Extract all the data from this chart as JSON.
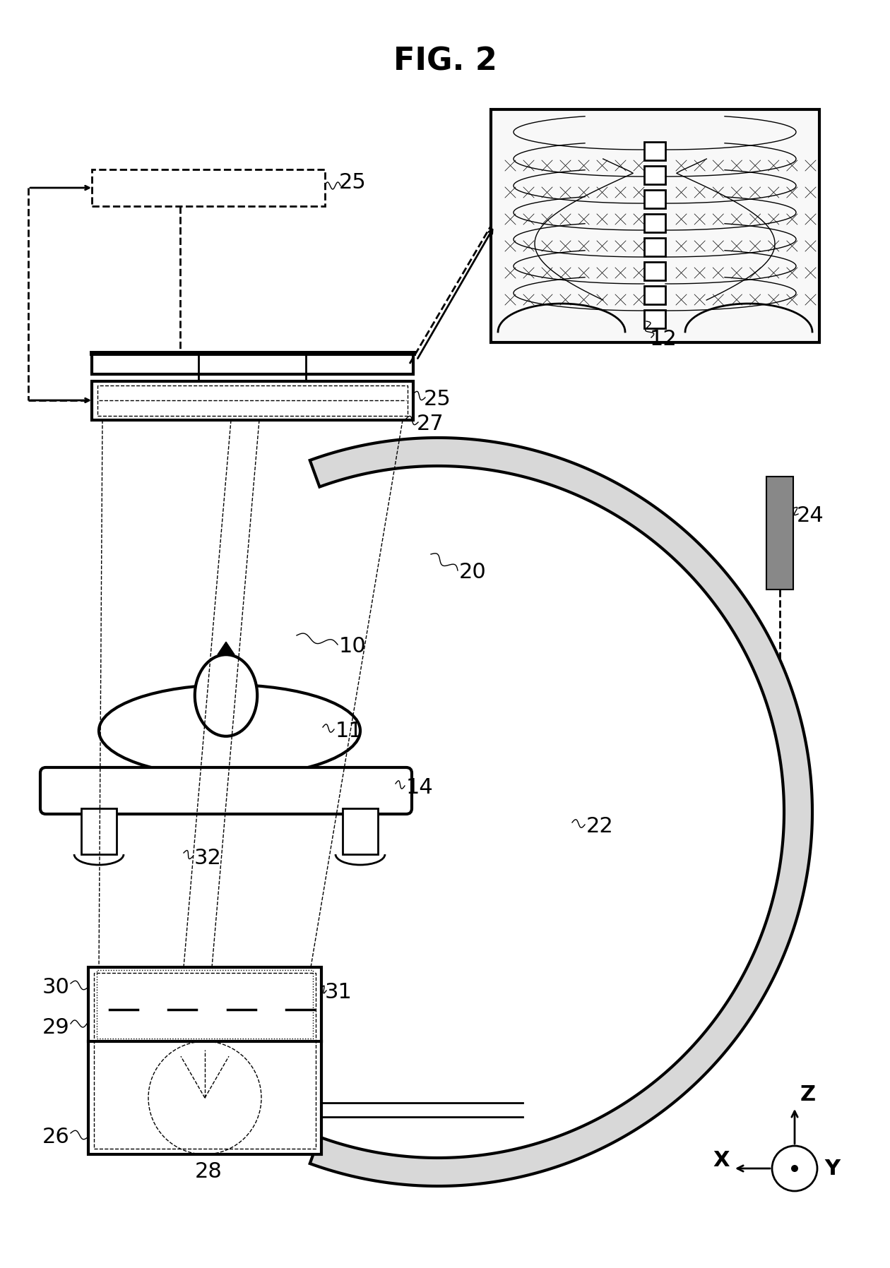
{
  "title": "FIG. 2",
  "bg_color": "#ffffff",
  "fig_width": 12.4,
  "fig_height": 17.76,
  "labels": {
    "25_top": "25",
    "12": "12",
    "25_mid": "25",
    "27": "27",
    "20": "20",
    "24": "24",
    "10": "10",
    "11": "11",
    "14": "14",
    "22": "22",
    "32": "32",
    "30": "30",
    "31": "31",
    "29": "29",
    "26": "26",
    "28": "28",
    "Z": "Z",
    "X": "X",
    "Y": "Y"
  }
}
